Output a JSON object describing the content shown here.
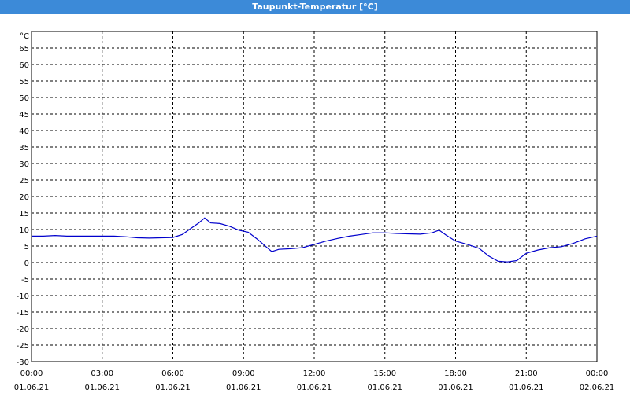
{
  "window": {
    "title": "Taupunkt-Temperatur [°C]"
  },
  "chart_data": {
    "type": "line",
    "title": "",
    "xlabel": "",
    "ylabel": "",
    "y_unit": "°C",
    "ylim": [
      -30,
      70
    ],
    "y_ticks": [
      65,
      60,
      55,
      50,
      45,
      40,
      35,
      30,
      25,
      20,
      15,
      10,
      5,
      0,
      -5,
      -10,
      -15,
      -20,
      -25,
      -30
    ],
    "xlim_hours": [
      0,
      24
    ],
    "x_ticks": [
      {
        "time": "00:00",
        "date": "01.06.21",
        "hour": 0
      },
      {
        "time": "03:00",
        "date": "01.06.21",
        "hour": 3
      },
      {
        "time": "06:00",
        "date": "01.06.21",
        "hour": 6
      },
      {
        "time": "09:00",
        "date": "01.06.21",
        "hour": 9
      },
      {
        "time": "12:00",
        "date": "01.06.21",
        "hour": 12
      },
      {
        "time": "15:00",
        "date": "01.06.21",
        "hour": 15
      },
      {
        "time": "18:00",
        "date": "01.06.21",
        "hour": 18
      },
      {
        "time": "21:00",
        "date": "01.06.21",
        "hour": 21
      },
      {
        "time": "00:00",
        "date": "02.06.21",
        "hour": 24
      }
    ],
    "grid": true,
    "line_color": "#0000cc",
    "series": [
      {
        "points": [
          [
            0.0,
            8.0
          ],
          [
            0.5,
            8.0
          ],
          [
            1.0,
            8.2
          ],
          [
            1.5,
            8.0
          ],
          [
            2.0,
            8.0
          ],
          [
            2.5,
            8.0
          ],
          [
            3.0,
            8.0
          ],
          [
            3.5,
            8.0
          ],
          [
            4.0,
            7.8
          ],
          [
            4.5,
            7.5
          ],
          [
            5.0,
            7.4
          ],
          [
            5.5,
            7.5
          ],
          [
            6.0,
            7.6
          ],
          [
            6.4,
            8.5
          ],
          [
            6.8,
            10.5
          ],
          [
            7.1,
            12.0
          ],
          [
            7.35,
            13.5
          ],
          [
            7.6,
            12.0
          ],
          [
            8.0,
            11.8
          ],
          [
            8.4,
            11.0
          ],
          [
            8.8,
            9.8
          ],
          [
            9.2,
            9.2
          ],
          [
            9.6,
            7.0
          ],
          [
            10.0,
            4.5
          ],
          [
            10.2,
            3.3
          ],
          [
            10.5,
            4.0
          ],
          [
            11.0,
            4.2
          ],
          [
            11.5,
            4.5
          ],
          [
            12.0,
            5.5
          ],
          [
            12.5,
            6.5
          ],
          [
            13.0,
            7.3
          ],
          [
            13.5,
            8.0
          ],
          [
            14.0,
            8.5
          ],
          [
            14.5,
            9.0
          ],
          [
            15.0,
            9.0
          ],
          [
            15.5,
            8.8
          ],
          [
            16.0,
            8.7
          ],
          [
            16.5,
            8.6
          ],
          [
            17.0,
            9.0
          ],
          [
            17.3,
            9.8
          ],
          [
            17.6,
            8.3
          ],
          [
            18.0,
            6.5
          ],
          [
            18.5,
            5.5
          ],
          [
            19.0,
            4.3
          ],
          [
            19.4,
            2.0
          ],
          [
            19.8,
            0.4
          ],
          [
            20.2,
            0.2
          ],
          [
            20.6,
            0.6
          ],
          [
            21.0,
            2.8
          ],
          [
            21.5,
            3.8
          ],
          [
            22.0,
            4.5
          ],
          [
            22.5,
            4.8
          ],
          [
            23.0,
            5.8
          ],
          [
            23.5,
            7.2
          ],
          [
            24.0,
            8.0
          ]
        ]
      }
    ]
  }
}
